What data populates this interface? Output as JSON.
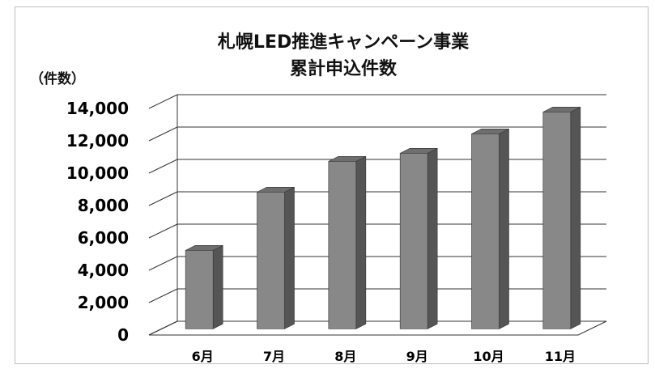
{
  "chart_data": {
    "type": "bar",
    "title_lines": [
      "札幌LED推進キャンペーン事業",
      "累計申込件数"
    ],
    "ylabel": "（件数）",
    "xlabel": "",
    "categories": [
      "6月",
      "7月",
      "8月",
      "9月",
      "10月",
      "11月"
    ],
    "values": [
      4850,
      8450,
      10350,
      10850,
      12050,
      13400
    ],
    "ylim": [
      0,
      14000
    ],
    "yticks": [
      "0",
      "2,000",
      "4,000",
      "6,000",
      "8,000",
      "10,000",
      "12,000",
      "14,000"
    ],
    "grid": true,
    "legend": "none",
    "three_d": true,
    "colors": {
      "bar_front": "#888888",
      "bar_side": "#555555",
      "bar_top": "#6e6e6e"
    }
  }
}
